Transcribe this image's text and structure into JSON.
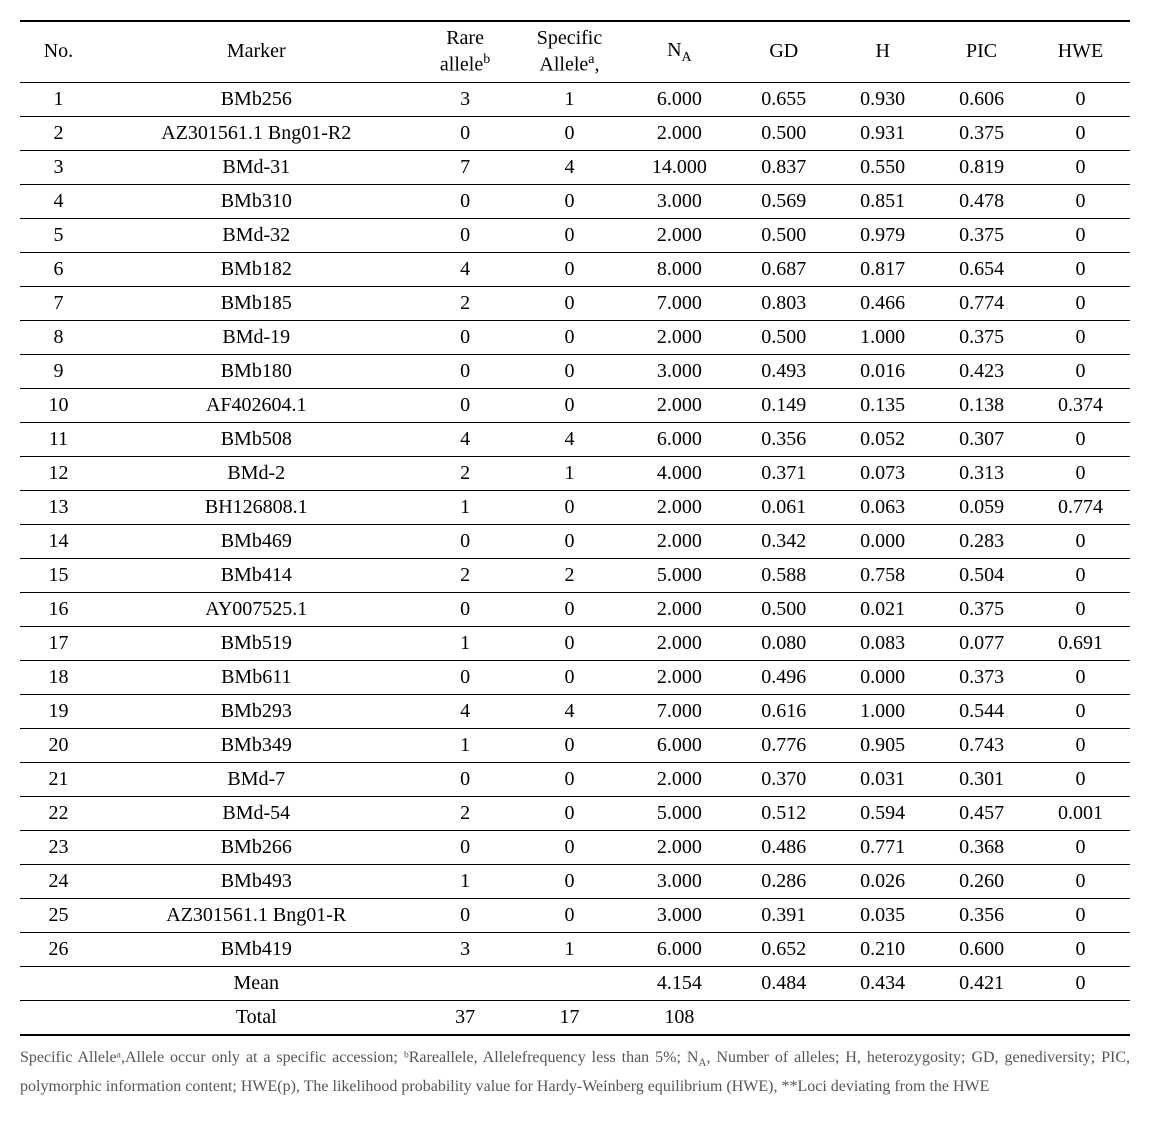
{
  "table": {
    "columns": {
      "no": "No.",
      "marker": "Marker",
      "rare_allele_line1": "Rare",
      "rare_allele_line2": "allele",
      "rare_allele_sup": "b",
      "specific_allele_line1": "Specific",
      "specific_allele_line2": "Allele",
      "specific_allele_sup": "a",
      "specific_allele_tail": ",",
      "na_prefix": "N",
      "na_sub": "A",
      "gd": "GD",
      "h": "H",
      "pic": "PIC",
      "hwe": "HWE"
    },
    "rows": [
      {
        "no": "1",
        "marker": "BMb256",
        "rare": "3",
        "spec": "1",
        "na": "6.000",
        "gd": "0.655",
        "h": "0.930",
        "pic": "0.606",
        "hwe": "0"
      },
      {
        "no": "2",
        "marker": "AZ301561.1 Bng01-R2",
        "rare": "0",
        "spec": "0",
        "na": "2.000",
        "gd": "0.500",
        "h": "0.931",
        "pic": "0.375",
        "hwe": "0"
      },
      {
        "no": "3",
        "marker": "BMd-31",
        "rare": "7",
        "spec": "4",
        "na": "14.000",
        "gd": "0.837",
        "h": "0.550",
        "pic": "0.819",
        "hwe": "0"
      },
      {
        "no": "4",
        "marker": "BMb310",
        "rare": "0",
        "spec": "0",
        "na": "3.000",
        "gd": "0.569",
        "h": "0.851",
        "pic": "0.478",
        "hwe": "0"
      },
      {
        "no": "5",
        "marker": "BMd-32",
        "rare": "0",
        "spec": "0",
        "na": "2.000",
        "gd": "0.500",
        "h": "0.979",
        "pic": "0.375",
        "hwe": "0"
      },
      {
        "no": "6",
        "marker": "BMb182",
        "rare": "4",
        "spec": "0",
        "na": "8.000",
        "gd": "0.687",
        "h": "0.817",
        "pic": "0.654",
        "hwe": "0"
      },
      {
        "no": "7",
        "marker": "BMb185",
        "rare": "2",
        "spec": "0",
        "na": "7.000",
        "gd": "0.803",
        "h": "0.466",
        "pic": "0.774",
        "hwe": "0"
      },
      {
        "no": "8",
        "marker": "BMd-19",
        "rare": "0",
        "spec": "0",
        "na": "2.000",
        "gd": "0.500",
        "h": "1.000",
        "pic": "0.375",
        "hwe": "0"
      },
      {
        "no": "9",
        "marker": "BMb180",
        "rare": "0",
        "spec": "0",
        "na": "3.000",
        "gd": "0.493",
        "h": "0.016",
        "pic": "0.423",
        "hwe": "0"
      },
      {
        "no": "10",
        "marker": "AF402604.1",
        "rare": "0",
        "spec": "0",
        "na": "2.000",
        "gd": "0.149",
        "h": "0.135",
        "pic": "0.138",
        "hwe": "0.374"
      },
      {
        "no": "11",
        "marker": "BMb508",
        "rare": "4",
        "spec": "4",
        "na": "6.000",
        "gd": "0.356",
        "h": "0.052",
        "pic": "0.307",
        "hwe": "0"
      },
      {
        "no": "12",
        "marker": "BMd-2",
        "rare": "2",
        "spec": "1",
        "na": "4.000",
        "gd": "0.371",
        "h": "0.073",
        "pic": "0.313",
        "hwe": "0"
      },
      {
        "no": "13",
        "marker": "BH126808.1",
        "rare": "1",
        "spec": "0",
        "na": "2.000",
        "gd": "0.061",
        "h": "0.063",
        "pic": "0.059",
        "hwe": "0.774"
      },
      {
        "no": "14",
        "marker": "BMb469",
        "rare": "0",
        "spec": "0",
        "na": "2.000",
        "gd": "0.342",
        "h": "0.000",
        "pic": "0.283",
        "hwe": "0"
      },
      {
        "no": "15",
        "marker": "BMb414",
        "rare": "2",
        "spec": "2",
        "na": "5.000",
        "gd": "0.588",
        "h": "0.758",
        "pic": "0.504",
        "hwe": "0"
      },
      {
        "no": "16",
        "marker": "AY007525.1",
        "rare": "0",
        "spec": "0",
        "na": "2.000",
        "gd": "0.500",
        "h": "0.021",
        "pic": "0.375",
        "hwe": "0"
      },
      {
        "no": "17",
        "marker": "BMb519",
        "rare": "1",
        "spec": "0",
        "na": "2.000",
        "gd": "0.080",
        "h": "0.083",
        "pic": "0.077",
        "hwe": "0.691"
      },
      {
        "no": "18",
        "marker": "BMb611",
        "rare": "0",
        "spec": "0",
        "na": "2.000",
        "gd": "0.496",
        "h": "0.000",
        "pic": "0.373",
        "hwe": "0"
      },
      {
        "no": "19",
        "marker": "BMb293",
        "rare": "4",
        "spec": "4",
        "na": "7.000",
        "gd": "0.616",
        "h": "1.000",
        "pic": "0.544",
        "hwe": "0"
      },
      {
        "no": "20",
        "marker": "BMb349",
        "rare": "1",
        "spec": "0",
        "na": "6.000",
        "gd": "0.776",
        "h": "0.905",
        "pic": "0.743",
        "hwe": "0"
      },
      {
        "no": "21",
        "marker": "BMd-7",
        "rare": "0",
        "spec": "0",
        "na": "2.000",
        "gd": "0.370",
        "h": "0.031",
        "pic": "0.301",
        "hwe": "0"
      },
      {
        "no": "22",
        "marker": "BMd-54",
        "rare": "2",
        "spec": "0",
        "na": "5.000",
        "gd": "0.512",
        "h": "0.594",
        "pic": "0.457",
        "hwe": "0.001"
      },
      {
        "no": "23",
        "marker": "BMb266",
        "rare": "0",
        "spec": "0",
        "na": "2.000",
        "gd": "0.486",
        "h": "0.771",
        "pic": "0.368",
        "hwe": "0"
      },
      {
        "no": "24",
        "marker": "BMb493",
        "rare": "1",
        "spec": "0",
        "na": "3.000",
        "gd": "0.286",
        "h": "0.026",
        "pic": "0.260",
        "hwe": "0"
      },
      {
        "no": "25",
        "marker": "AZ301561.1 Bng01-R",
        "rare": "0",
        "spec": "0",
        "na": "3.000",
        "gd": "0.391",
        "h": "0.035",
        "pic": "0.356",
        "hwe": "0"
      },
      {
        "no": "26",
        "marker": "BMb419",
        "rare": "3",
        "spec": "1",
        "na": "6.000",
        "gd": "0.652",
        "h": "0.210",
        "pic": "0.600",
        "hwe": "0"
      }
    ],
    "mean_label": "Mean",
    "mean": {
      "na": "4.154",
      "gd": "0.484",
      "h": "0.434",
      "pic": "0.421",
      "hwe": "0"
    },
    "total_label": "Total",
    "total": {
      "rare": "37",
      "spec": "17",
      "na": "108"
    }
  },
  "footnote": {
    "text_before_na": "Specific Alleleᵃ,Allele occur only at a specific accession; ᵇRareallele, Allelefrequency less than 5%; ",
    "na_prefix": "N",
    "na_sub": "A",
    "text_after_na": ", Number of alleles; H, heterozygosity; GD, genediversity; PIC, polymorphic information content; HWE(p), The likelihood probability value for Hardy-Weinberg equilibrium (HWE), **Loci deviating from the HWE"
  }
}
